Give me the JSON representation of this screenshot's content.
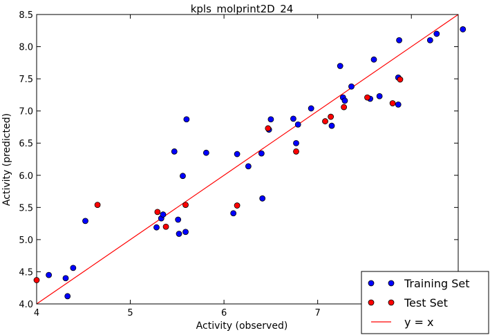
{
  "chart_data": {
    "type": "scatter",
    "title": "kpls_molprint2D_24",
    "xlabel": "Activity (observed)",
    "ylabel": "Activity (predicted)",
    "xlim": [
      4,
      8.5
    ],
    "ylim": [
      4.0,
      8.5
    ],
    "x_ticks": [
      "4",
      "5",
      "6",
      "7",
      "8"
    ],
    "y_ticks": [
      "4.0",
      "4.5",
      "5.0",
      "5.5",
      "6.0",
      "6.5",
      "7.0",
      "7.5",
      "8.0",
      "8.5"
    ],
    "grid": false,
    "legend_position": "bottom-right",
    "series": [
      {
        "name": "Training Set",
        "color": "#0000ff",
        "points": [
          [
            4.13,
            4.45
          ],
          [
            4.31,
            4.4
          ],
          [
            4.33,
            4.12
          ],
          [
            4.39,
            4.56
          ],
          [
            4.52,
            5.29
          ],
          [
            5.28,
            5.19
          ],
          [
            5.33,
            5.33
          ],
          [
            5.35,
            5.39
          ],
          [
            5.47,
            6.37
          ],
          [
            5.51,
            5.31
          ],
          [
            5.52,
            5.09
          ],
          [
            5.56,
            5.99
          ],
          [
            5.59,
            5.12
          ],
          [
            5.6,
            6.87
          ],
          [
            5.81,
            6.35
          ],
          [
            6.1,
            5.41
          ],
          [
            6.14,
            6.33
          ],
          [
            6.26,
            6.14
          ],
          [
            6.4,
            6.34
          ],
          [
            6.41,
            5.64
          ],
          [
            6.48,
            6.71
          ],
          [
            6.5,
            6.87
          ],
          [
            6.74,
            6.88
          ],
          [
            6.77,
            6.5
          ],
          [
            6.79,
            6.79
          ],
          [
            6.93,
            7.04
          ],
          [
            7.15,
            6.77
          ],
          [
            7.24,
            7.7
          ],
          [
            7.27,
            7.21
          ],
          [
            7.29,
            7.16
          ],
          [
            7.36,
            7.38
          ],
          [
            7.56,
            7.19
          ],
          [
            7.6,
            7.8
          ],
          [
            7.66,
            7.23
          ],
          [
            7.86,
            7.52
          ],
          [
            7.86,
            7.1
          ],
          [
            7.87,
            8.1
          ],
          [
            8.2,
            8.1
          ],
          [
            8.27,
            8.2
          ],
          [
            8.55,
            8.27
          ]
        ]
      },
      {
        "name": "Test Set",
        "color": "#ff0000",
        "points": [
          [
            4.0,
            4.37
          ],
          [
            4.65,
            5.54
          ],
          [
            5.29,
            5.43
          ],
          [
            5.38,
            5.2
          ],
          [
            5.59,
            5.54
          ],
          [
            6.14,
            5.53
          ],
          [
            6.47,
            6.73
          ],
          [
            6.77,
            6.37
          ],
          [
            7.08,
            6.84
          ],
          [
            7.14,
            6.91
          ],
          [
            7.28,
            7.06
          ],
          [
            7.53,
            7.21
          ],
          [
            7.8,
            7.12
          ],
          [
            7.88,
            7.49
          ]
        ]
      },
      {
        "name": "y = x",
        "color": "#ff0000",
        "type": "line",
        "points": [
          [
            4.0,
            4.0
          ],
          [
            8.5,
            8.5
          ]
        ]
      }
    ]
  }
}
